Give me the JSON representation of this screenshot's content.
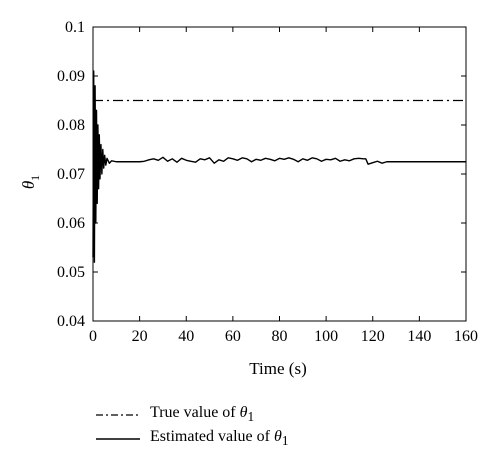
{
  "chart_data": {
    "type": "line",
    "xlabel": "Time (s)",
    "ylabel_symbol": "θ",
    "ylabel_subscript": "1",
    "xlim": [
      0,
      160
    ],
    "ylim": [
      0.04,
      0.1
    ],
    "x_ticks": [
      0,
      20,
      40,
      60,
      80,
      100,
      120,
      140,
      160
    ],
    "y_ticks": [
      0.04,
      0.05,
      0.06,
      0.07,
      0.08,
      0.09,
      0.1
    ],
    "y_tick_labels": [
      "0.04",
      "0.05",
      "0.06",
      "0.07",
      "0.08",
      "0.09",
      "0.1"
    ],
    "grid": false,
    "legend_position": "below",
    "series": [
      {
        "name": "True value of θ1",
        "line_style": "dash-dot",
        "color": "#000000",
        "x": [
          0,
          160
        ],
        "y": [
          0.085,
          0.085
        ]
      },
      {
        "name": "Estimated value of θ1",
        "line_style": "solid",
        "color": "#000000",
        "x": [
          0,
          0.3,
          0.6,
          0.9,
          1.2,
          1.5,
          1.8,
          2.1,
          2.4,
          2.7,
          3.0,
          3.4,
          3.8,
          4.2,
          4.6,
          5.0,
          5.5,
          6,
          7,
          8,
          10,
          15,
          20,
          22,
          24,
          26,
          28,
          30,
          32,
          34,
          36,
          38,
          40,
          42,
          44,
          46,
          48,
          50,
          52,
          54,
          56,
          58,
          60,
          62,
          64,
          66,
          68,
          70,
          72,
          74,
          76,
          78,
          80,
          82,
          84,
          86,
          88,
          90,
          92,
          94,
          96,
          98,
          100,
          102,
          104,
          106,
          108,
          110,
          112,
          114,
          116,
          117,
          118,
          120,
          122,
          124,
          126,
          128,
          130,
          140,
          150,
          160
        ],
        "y": [
          0.053,
          0.091,
          0.052,
          0.088,
          0.06,
          0.083,
          0.064,
          0.08,
          0.067,
          0.078,
          0.069,
          0.076,
          0.07,
          0.075,
          0.0712,
          0.0738,
          0.0718,
          0.0732,
          0.0722,
          0.0727,
          0.0725,
          0.0725,
          0.0725,
          0.0726,
          0.0729,
          0.0731,
          0.0728,
          0.0734,
          0.0726,
          0.0731,
          0.0724,
          0.0732,
          0.0728,
          0.0726,
          0.0724,
          0.0731,
          0.0729,
          0.0733,
          0.0722,
          0.0729,
          0.0726,
          0.0733,
          0.0731,
          0.0728,
          0.0733,
          0.0731,
          0.0725,
          0.073,
          0.0728,
          0.0732,
          0.073,
          0.0727,
          0.0732,
          0.073,
          0.0733,
          0.073,
          0.0725,
          0.0731,
          0.0728,
          0.0733,
          0.0731,
          0.0726,
          0.073,
          0.0729,
          0.0732,
          0.0726,
          0.0729,
          0.0727,
          0.0731,
          0.0732,
          0.0731,
          0.0731,
          0.072,
          0.0723,
          0.0726,
          0.0722,
          0.0725,
          0.0725,
          0.0725,
          0.0725,
          0.0725,
          0.0725
        ]
      }
    ]
  },
  "legend": {
    "items": [
      {
        "text": "True value of ",
        "symbol": "θ",
        "subscript": "1",
        "line_style": "dash-dot"
      },
      {
        "text": "Estimated value of ",
        "symbol": "θ",
        "subscript": "1",
        "line_style": "solid"
      }
    ]
  }
}
